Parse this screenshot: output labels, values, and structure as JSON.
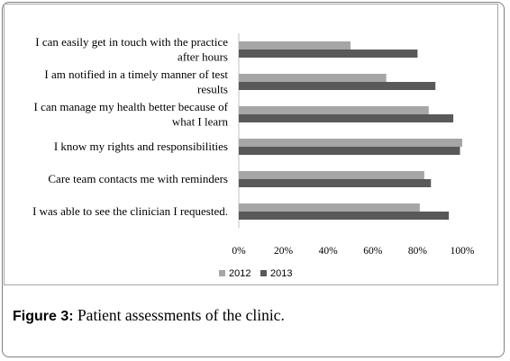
{
  "chart_data": {
    "type": "bar",
    "orientation": "horizontal",
    "categories": [
      [
        "I can easily get in touch with the practice",
        "after hours"
      ],
      [
        "I am notified in a timely manner of test",
        "results"
      ],
      [
        "I can manage my health better because of",
        "what I learn"
      ],
      [
        "I know my rights and responsibilities"
      ],
      [
        "Care team contacts me with reminders"
      ],
      [
        "I was able to see the clinician I requested."
      ]
    ],
    "series": [
      {
        "name": "2012",
        "color": "#a6a6a6",
        "values": [
          50,
          66,
          85,
          100,
          83,
          81
        ]
      },
      {
        "name": "2013",
        "color": "#595959",
        "values": [
          80,
          88,
          96,
          99,
          86,
          94
        ]
      }
    ],
    "xlim": [
      0,
      100
    ],
    "xticks": [
      "0%",
      "20%",
      "40%",
      "60%",
      "80%",
      "100%"
    ],
    "grid": false,
    "legend_position": "bottom"
  },
  "caption": {
    "label": "Figure 3:",
    "text": " Patient assessments of the clinic."
  }
}
